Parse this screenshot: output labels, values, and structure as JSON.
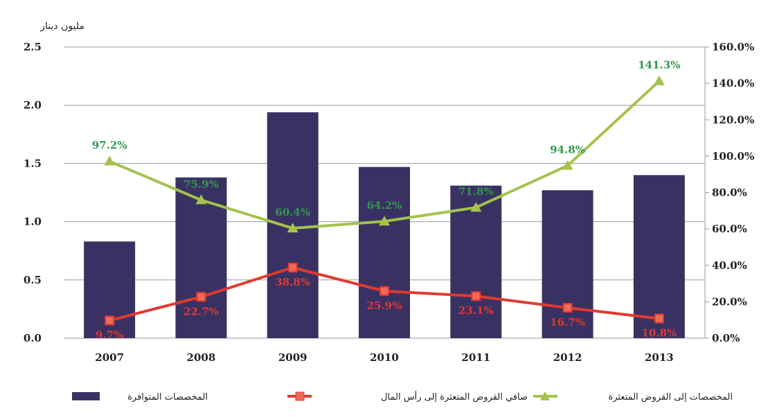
{
  "chart_data": {
    "type": "bar+line",
    "ylabel": "مليون دينار",
    "categories": [
      "2007",
      "2008",
      "2009",
      "2010",
      "2011",
      "2012",
      "2013"
    ],
    "ylim": [
      0,
      2.5
    ],
    "y_ticks": [
      "0.0",
      "0.5",
      "1.0",
      "1.5",
      "2.0",
      "2.5"
    ],
    "y2lim": [
      0,
      160
    ],
    "y2_ticks": [
      "0.0%",
      "20.0%",
      "40.0%",
      "60.0%",
      "80.0%",
      "100.0%",
      "120.0%",
      "140.0%",
      "160.0%"
    ],
    "grid": true,
    "legend_placement": "bottom",
    "series": [
      {
        "name": "المخصصات المتوافرة",
        "type": "bar",
        "axis": "left",
        "color": "#3a3163",
        "values": [
          0.83,
          1.38,
          1.94,
          1.47,
          1.31,
          1.27,
          1.4
        ]
      },
      {
        "name": "صافي القروض المتعثرة إلى رأس المال",
        "type": "line",
        "axis": "right",
        "marker": "square",
        "color": "#e03a30",
        "label_color": "#e03a30",
        "values": [
          9.7,
          22.7,
          38.8,
          25.9,
          23.1,
          16.7,
          10.8
        ],
        "labels": [
          "9.7%",
          "22.7%",
          "38.8%",
          "25.9%",
          "23.1%",
          "16.7%",
          "10.8%"
        ]
      },
      {
        "name": "المخصصات إلى القروض المتعثرة",
        "type": "line",
        "axis": "right",
        "marker": "triangle",
        "color": "#a5c24d",
        "label_color": "#2e9b4a",
        "values": [
          97.2,
          75.9,
          60.4,
          64.2,
          71.8,
          94.8,
          141.3
        ],
        "labels": [
          "97.2%",
          "75.9%",
          "60.4%",
          "64.2%",
          "71.8%",
          "94.8%",
          "141.3%"
        ]
      }
    ]
  }
}
